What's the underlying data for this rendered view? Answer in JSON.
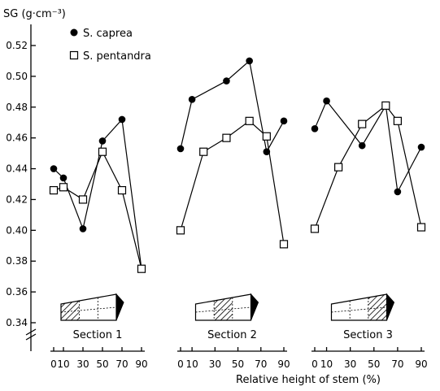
{
  "chart_data": {
    "type": "line",
    "ylabel": "SG (g·cm⁻³)",
    "xlabel": "Relative height of stem (%)",
    "ylim": [
      0.34,
      0.52
    ],
    "y_ticks": [
      0.34,
      0.36,
      0.38,
      0.4,
      0.42,
      0.44,
      0.46,
      0.48,
      0.5,
      0.52
    ],
    "x_ticks": [
      0,
      10,
      30,
      50,
      70,
      90
    ],
    "x_tick_labels": [
      "0",
      "10",
      "30",
      "50",
      "70",
      "90"
    ],
    "legend_position": "top-left",
    "legend": [
      {
        "name": "S. caprea",
        "marker": "filled-circle"
      },
      {
        "name": "S. pentandra",
        "marker": "open-square"
      }
    ],
    "panels": [
      {
        "label": "Section 1",
        "highlight_segment": 1,
        "series": [
          {
            "name": "S. caprea",
            "x": [
              0,
              10,
              30,
              50,
              70,
              90
            ],
            "y": [
              0.44,
              0.434,
              0.401,
              0.458,
              0.472,
              0.375
            ]
          },
          {
            "name": "S. pentandra",
            "x": [
              0,
              10,
              30,
              50,
              70,
              90
            ],
            "y": [
              0.426,
              0.428,
              0.42,
              0.451,
              0.426,
              0.375
            ]
          }
        ]
      },
      {
        "label": "Section 2",
        "highlight_segment": 2,
        "series": [
          {
            "name": "S. caprea",
            "x": [
              0,
              10,
              40,
              60,
              75,
              90
            ],
            "y": [
              0.453,
              0.485,
              0.497,
              0.51,
              0.451,
              0.471
            ]
          },
          {
            "name": "S. pentandra",
            "x": [
              0,
              20,
              40,
              60,
              75,
              90
            ],
            "y": [
              0.4,
              0.451,
              0.46,
              0.471,
              0.461,
              0.391
            ]
          }
        ]
      },
      {
        "label": "Section 3",
        "highlight_segment": 3,
        "series": [
          {
            "name": "S. caprea",
            "x": [
              0,
              10,
              40,
              60,
              70,
              90
            ],
            "y": [
              0.466,
              0.484,
              0.455,
              0.481,
              0.425,
              0.454
            ]
          },
          {
            "name": "S. pentandra",
            "x": [
              0,
              20,
              40,
              60,
              70,
              90
            ],
            "y": [
              0.401,
              0.441,
              0.469,
              0.481,
              0.471,
              0.402
            ]
          }
        ]
      }
    ]
  }
}
